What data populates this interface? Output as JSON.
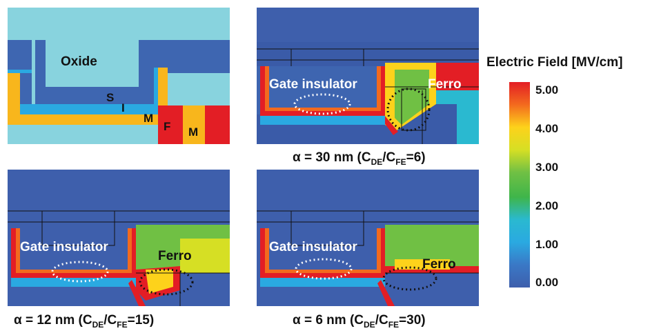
{
  "schematic": {
    "labels": {
      "oxide": "Oxide",
      "s": "S",
      "i": "I",
      "m1": "M",
      "f": "F",
      "m2": "M"
    },
    "colors": {
      "oxide": "#88d3de",
      "silicon": "#3e66b1",
      "insulator": "#2aa9e1",
      "metal": "#f8b61c",
      "ferro": "#e31e25"
    }
  },
  "panels": [
    {
      "name": "alpha-30",
      "gate_label": "Gate insulator",
      "ferro_label": "Ferro",
      "caption": {
        "prefix": "α = 30 nm (C",
        "sub1": "DE",
        "mid": "/C",
        "sub2": "FE",
        "suffix": "=6)"
      }
    },
    {
      "name": "alpha-12",
      "gate_label": "Gate insulator",
      "ferro_label": "Ferro",
      "caption": {
        "prefix": "α = 12 nm (C",
        "sub1": "DE",
        "mid": "/C",
        "sub2": "FE",
        "suffix": "=15)"
      }
    },
    {
      "name": "alpha-6",
      "gate_label": "Gate insulator",
      "ferro_label": "Ferro",
      "caption": {
        "prefix": "α = 6 nm (C",
        "sub1": "DE",
        "mid": "/C",
        "sub2": "FE",
        "suffix": "=30)"
      }
    }
  ],
  "legend": {
    "title": "Electric Field [MV/cm]",
    "ticks": [
      "5.00",
      "4.00",
      "3.00",
      "2.00",
      "1.00",
      "0.00"
    ],
    "colors": [
      "#e31e25",
      "#f36a1e",
      "#fdd21b",
      "#d6df24",
      "#70c044",
      "#3fb54a",
      "#2ab9d0",
      "#2aa9e1",
      "#3a78c6",
      "#3e5fac"
    ]
  }
}
